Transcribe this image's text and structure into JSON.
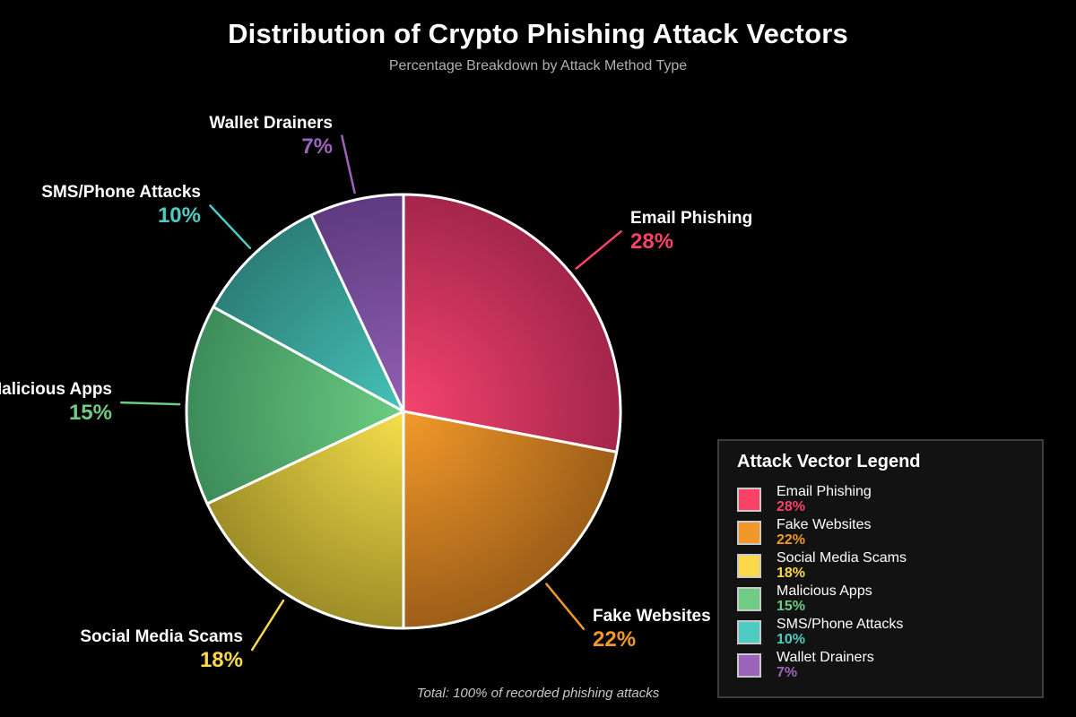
{
  "title": "Distribution of Crypto Phishing Attack Vectors",
  "subtitle": "Percentage Breakdown by Attack Method Type",
  "footer_note": "Total: 100% of recorded phishing attacks",
  "legend": {
    "title": "Attack Vector Legend"
  },
  "colors": {
    "background": "#000000",
    "slice_border": "#ffffff",
    "legend_border": "#3d3d3d",
    "legend_bg": "#121212"
  },
  "chart_data": {
    "type": "pie",
    "title": "Distribution of Crypto Phishing Attack Vectors",
    "subtitle": "Percentage Breakdown by Attack Method Type",
    "total_label": "Total: 100% of recorded phishing attacks",
    "legend_title": "Attack Vector Legend",
    "legend_position": "right",
    "start_angle_deg": 0,
    "direction": "clockwise",
    "slices": [
      {
        "label": "Email Phishing",
        "value": 28,
        "pct_label": "28%",
        "color": "#f94266",
        "gradient_inner": "#f4436e",
        "gradient_outer": "#a3264a"
      },
      {
        "label": "Fake Websites",
        "value": 22,
        "pct_label": "22%",
        "color": "#f2982b",
        "gradient_inner": "#f39a2a",
        "gradient_outer": "#9d5e18"
      },
      {
        "label": "Social Media Scams",
        "value": 18,
        "pct_label": "18%",
        "color": "#fbd84c",
        "gradient_inner": "#f5df4c",
        "gradient_outer": "#9e8e27"
      },
      {
        "label": "Malicious Apps",
        "value": 15,
        "pct_label": "15%",
        "color": "#70cb85",
        "gradient_inner": "#6ccd82",
        "gradient_outer": "#3c8c5a"
      },
      {
        "label": "SMS/Phone Attacks",
        "value": 10,
        "pct_label": "10%",
        "color": "#4eccc3",
        "gradient_inner": "#46c2b8",
        "gradient_outer": "#2c7f78"
      },
      {
        "label": "Wallet Drainers",
        "value": 7,
        "pct_label": "7%",
        "color": "#9c64b8",
        "gradient_inner": "#9160b2",
        "gradient_outer": "#5e3a80"
      }
    ]
  }
}
